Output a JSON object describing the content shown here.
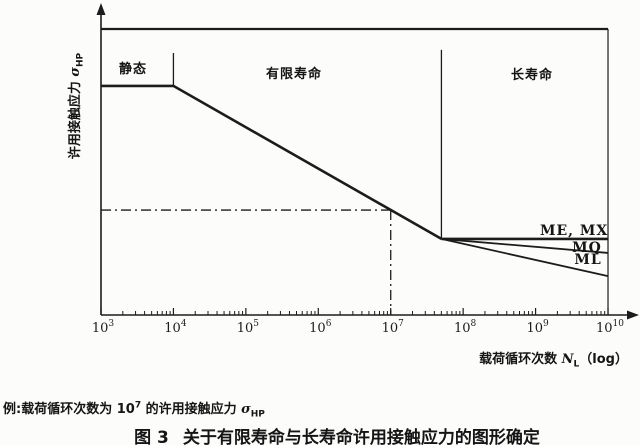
{
  "chart_data": {
    "type": "line",
    "x_scale": "log",
    "x_tick_exponents": [
      3,
      4,
      5,
      6,
      7,
      8,
      9,
      10
    ],
    "x_axis_label": "载荷循环次数 NL（log）",
    "y_axis_label": "许用接触应力 σHP",
    "ylim": [
      0,
      1
    ],
    "regions": [
      {
        "label": "静态"
      },
      {
        "label": "有限寿命"
      },
      {
        "label": "长寿命"
      }
    ],
    "series": [
      {
        "name": "sigma-hp-main-curve",
        "label": "",
        "points": [
          [
            3,
            0.801
          ],
          [
            4,
            0.801
          ],
          [
            7.7,
            0.266
          ]
        ]
      },
      {
        "name": "curve-me-mx",
        "label": "ME, MX",
        "points": [
          [
            7.7,
            0.266
          ],
          [
            10,
            0.266
          ]
        ]
      },
      {
        "name": "curve-mq",
        "label": "MQ",
        "points": [
          [
            7.7,
            0.266
          ],
          [
            10,
            0.217
          ]
        ]
      },
      {
        "name": "curve-ml",
        "label": "ML",
        "points": [
          [
            7.7,
            0.266
          ],
          [
            10,
            0.136
          ]
        ]
      }
    ],
    "boundaries": [
      {
        "name": "top-boundary",
        "points": [
          [
            3,
            1.0
          ],
          [
            10,
            1.0
          ]
        ]
      },
      {
        "name": "right-boundary",
        "points": [
          [
            10,
            1.0
          ],
          [
            10,
            0.0
          ]
        ]
      },
      {
        "name": "static-finite-divider",
        "points": [
          [
            4,
            0.801
          ],
          [
            4,
            0.916
          ]
        ]
      },
      {
        "name": "finite-long-divider",
        "points": [
          [
            7.7,
            0.266
          ],
          [
            7.7,
            0.927
          ]
        ]
      }
    ],
    "example_lines": [
      {
        "name": "example-horizontal",
        "style": "dash-dot",
        "points": [
          [
            3,
            0.367
          ],
          [
            7,
            0.367
          ]
        ]
      },
      {
        "name": "example-vertical",
        "style": "dash-dot",
        "points": [
          [
            7,
            0.367
          ],
          [
            7,
            0.0
          ]
        ]
      }
    ]
  },
  "axes": {
    "ylabel_parts": {
      "text": "许用接触应力 ",
      "sigma": "σ",
      "sub": "HP"
    },
    "xlabel_parts": {
      "text": "载荷循环次数 ",
      "var": "N",
      "sub": "L",
      "suffix": "（log）"
    },
    "tick_base": "10"
  },
  "caption_parts": {
    "prefix": "例:载荷循环次数为 10",
    "sup": "7",
    "middle": " 的许用接触应力 ",
    "sigma": "σ",
    "sub": "HP"
  },
  "title_parts": {
    "fig": "图 3",
    "text": "关于有限寿命与长寿命许用接触应力的图形确定"
  },
  "colors": {
    "ink": "#1c1c1c",
    "background": "#fcfcfa"
  }
}
